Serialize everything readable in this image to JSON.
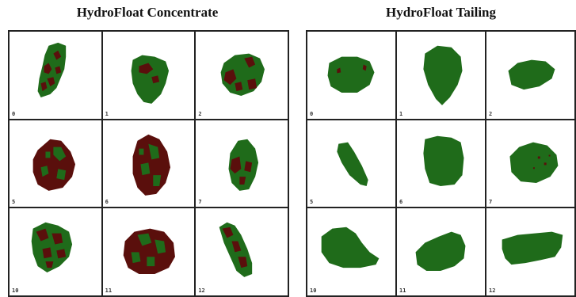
{
  "panels": [
    {
      "id": "concentrate",
      "title": "HydroFloat Concentrate",
      "particles": [
        {
          "label": "0"
        },
        {
          "label": "1"
        },
        {
          "label": "2"
        },
        {
          "label": "5"
        },
        {
          "label": "6"
        },
        {
          "label": "7"
        },
        {
          "label": "10"
        },
        {
          "label": "11"
        },
        {
          "label": "12"
        }
      ]
    },
    {
      "id": "tailing",
      "title": "HydroFloat Tailing",
      "particles": [
        {
          "label": "0"
        },
        {
          "label": "1"
        },
        {
          "label": "2"
        },
        {
          "label": "5"
        },
        {
          "label": "6"
        },
        {
          "label": "7"
        },
        {
          "label": "10"
        },
        {
          "label": "11"
        },
        {
          "label": "12"
        }
      ]
    }
  ],
  "colors": {
    "green": "#1f6b1a",
    "maroon": "#5a0f0c",
    "border": "#222222"
  }
}
